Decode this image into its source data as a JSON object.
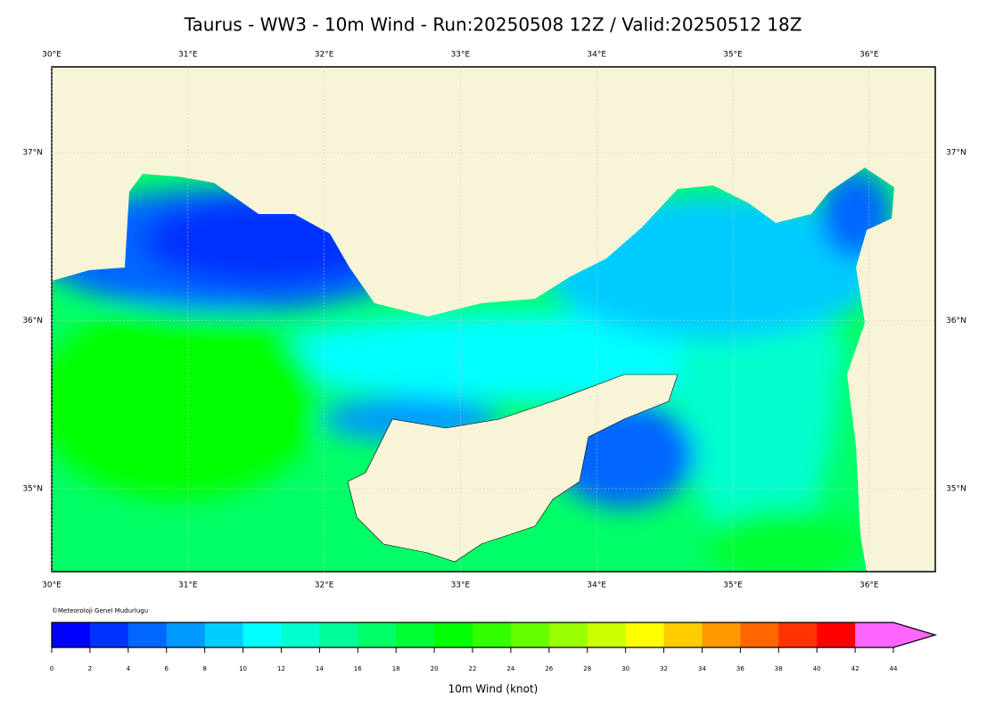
{
  "title": "Taurus - WW3 - 10m Wind - Run:20250508 12Z / Valid:20250512 18Z",
  "map": {
    "lon_labels": [
      "30°E",
      "31°E",
      "32°E",
      "33°E",
      "34°E",
      "35°E",
      "36°E"
    ],
    "lat_labels": [
      "37°N",
      "36°N",
      "35°N"
    ]
  },
  "credit": "©Meteoroloji Genel Mudurlugu",
  "colorbar": {
    "label": "10m Wind (knot)",
    "ticks": [
      0,
      2,
      4,
      6,
      8,
      10,
      12,
      14,
      16,
      18,
      20,
      22,
      24,
      26,
      28,
      30,
      32,
      34,
      36,
      38,
      40,
      42,
      44
    ],
    "colors": [
      "#0000ff",
      "#0033ff",
      "#0066ff",
      "#0099ff",
      "#00ccff",
      "#00ffff",
      "#00ffcc",
      "#00ff99",
      "#00ff66",
      "#00ff33",
      "#00ff00",
      "#33ff00",
      "#66ff00",
      "#99ff00",
      "#ccff00",
      "#ffff00",
      "#ffcc00",
      "#ff9900",
      "#ff6600",
      "#ff3300",
      "#ff0000",
      "#ff66ff"
    ]
  }
}
